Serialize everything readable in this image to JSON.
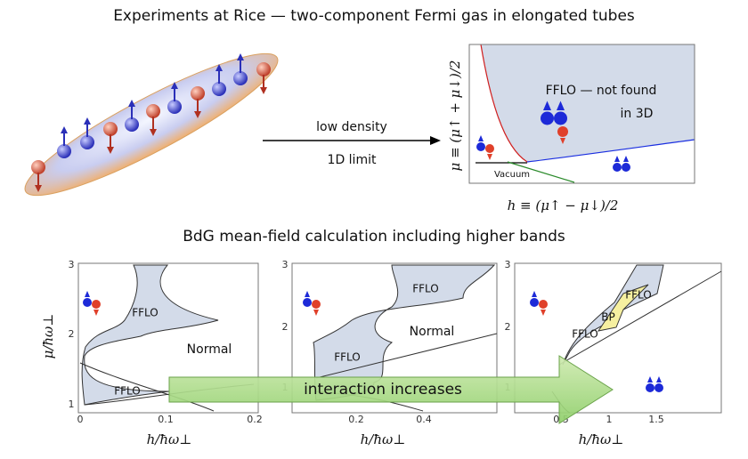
{
  "title": "Experiments at Rice — two-component Fermi gas in elongated tubes",
  "tube_arrow_labels": [
    "low density",
    "1D limit"
  ],
  "phase_diagram": {
    "region_lines": [
      "FFLO — not found",
      "in 3D"
    ],
    "vacuum": "Vacuum",
    "y_axis_label": "μ ≡ (μ↑ + μ↓)/2",
    "x_axis_label": "h ≡ (μ↑ − μ↓)/2"
  },
  "subtitle": "BdG mean-field calculation including higher bands",
  "y_axis_label": "μ/ħω⊥",
  "panels": [
    {
      "x_ticks": [
        "0",
        "0.1",
        "0.2"
      ],
      "y_ticks": [
        "3",
        "2",
        "1"
      ],
      "x_axis_label": "h/ħω⊥",
      "regions": [
        "FFLO",
        "Normal",
        "FFLO"
      ]
    },
    {
      "x_ticks": [
        "0.2",
        "0.4"
      ],
      "y_ticks": [
        "3",
        "2",
        "1"
      ],
      "x_axis_label": "h/ħω⊥",
      "regions": [
        "FFLO",
        "Normal",
        "FFLO"
      ]
    },
    {
      "x_ticks": [
        "0.5",
        "1",
        "1.5"
      ],
      "y_ticks": [
        "3",
        "2",
        "1"
      ],
      "x_axis_label": "h/ħω⊥",
      "regions": [
        "FFLO",
        "BP",
        "FFLO"
      ]
    }
  ],
  "arrow_label": "interaction increases"
}
